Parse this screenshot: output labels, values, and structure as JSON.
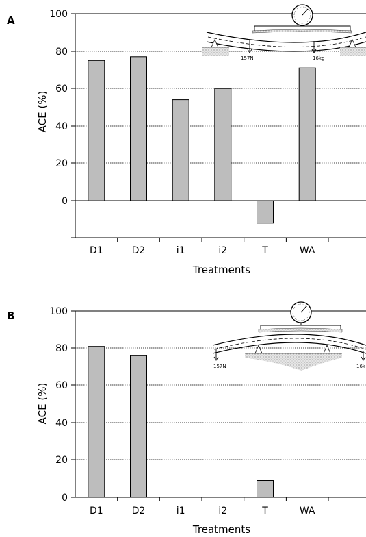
{
  "chart_data": [
    {
      "type": "bar",
      "panel_label": "A",
      "categories": [
        "D1",
        "D2",
        "i1",
        "i2",
        "T",
        "WA"
      ],
      "values": [
        75,
        77,
        54,
        60,
        -12,
        71
      ],
      "y_ticks": [
        "100",
        "80",
        "60",
        "40",
        "20",
        "0"
      ],
      "ylabel": "ACE (%)",
      "xlabel": "Treatments",
      "ylim": [
        -20,
        100
      ],
      "grid": true,
      "bar_color": "#bdbdbd",
      "inset": {
        "load_left": "157N",
        "load_right": "16kg"
      }
    },
    {
      "type": "bar",
      "panel_label": "B",
      "categories": [
        "D1",
        "D2",
        "i1",
        "i2",
        "T",
        "WA"
      ],
      "values": [
        81,
        76,
        null,
        null,
        9,
        null
      ],
      "y_ticks": [
        "100",
        "80",
        "60",
        "40",
        "20",
        "0"
      ],
      "ylabel": "ACE (%)",
      "xlabel": "Treatments",
      "ylim": [
        0,
        100
      ],
      "grid": true,
      "bar_color": "#bdbdbd",
      "inset": {
        "load_left": "157N",
        "load_right": "16k"
      }
    }
  ]
}
